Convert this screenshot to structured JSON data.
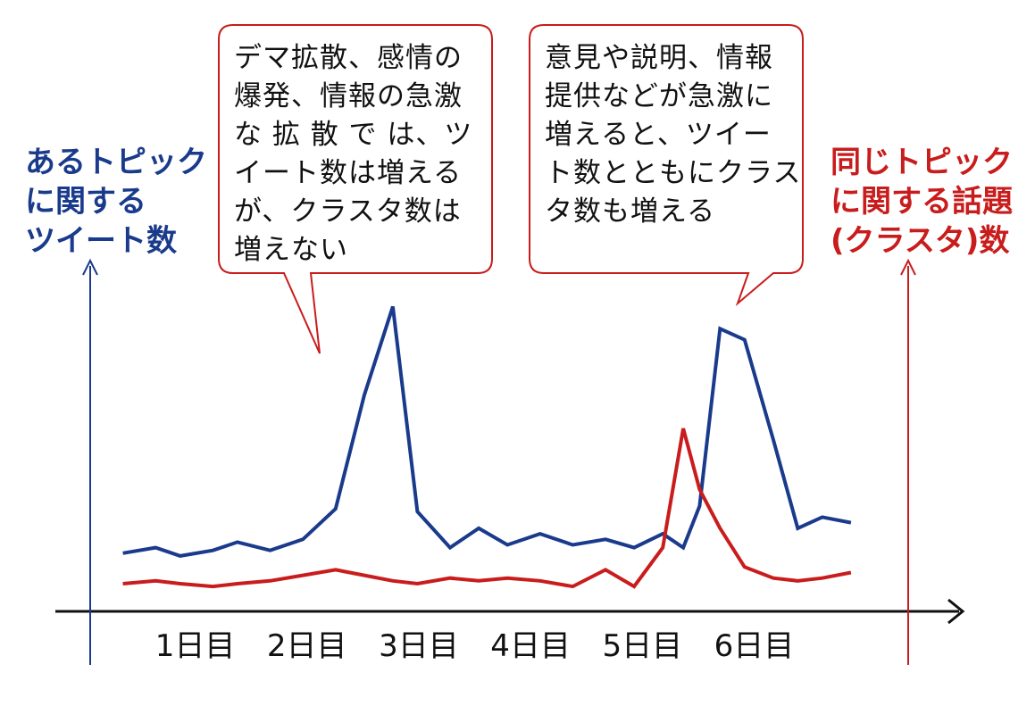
{
  "left_axis_title": [
    "あるトピック",
    "に関する",
    "ツイート数"
  ],
  "right_axis_title": [
    "同じトピック",
    "に関する話題",
    "(クラスタ)数"
  ],
  "callouts": {
    "left": [
      "デマ拡散、感情の",
      "爆発、情報の急激",
      "な 拡 散 で は、ツ",
      "イート数は増える",
      "が、クラスタ数は",
      "増えない"
    ],
    "right": [
      "意見や説明、情報",
      "提供などが急激に",
      "増えると、ツイー",
      "ト数とともにクラス",
      "タ数も増える"
    ]
  },
  "colors": {
    "tweets": "#1a3a8c",
    "clusters": "#c91c1c",
    "bubble_border": "#c91c1c",
    "axis": "#111111"
  },
  "chart_data": {
    "type": "line",
    "categories": [
      "1日目",
      "2日目",
      "3日目",
      "4日目",
      "5日目",
      "6日目"
    ],
    "x": [
      0.4,
      0.8,
      1.1,
      1.5,
      1.8,
      2.2,
      2.6,
      3.0,
      3.35,
      3.7,
      4.0,
      4.4,
      4.75,
      5.1,
      5.5,
      5.9,
      6.3,
      6.65,
      7.0,
      7.25,
      7.45,
      7.7,
      8.0,
      8.35,
      8.65,
      8.95,
      9.3
    ],
    "series": [
      {
        "key": "tweets",
        "values": [
          10.5,
          11.5,
          10,
          11,
          12.5,
          11,
          13,
          18.5,
          39,
          55,
          18,
          11.5,
          15,
          12,
          14,
          12,
          13,
          11.5,
          14,
          11.5,
          19,
          51,
          49,
          31,
          15,
          17,
          16
        ]
      },
      {
        "key": "clusters",
        "values": [
          5,
          5.5,
          5,
          4.5,
          5,
          5.5,
          6.5,
          7.5,
          6.5,
          5.5,
          5,
          6,
          5.5,
          6,
          5.5,
          4.5,
          7.5,
          4.5,
          11.5,
          33,
          22,
          15,
          8,
          6,
          5.5,
          6,
          7
        ]
      }
    ],
    "ylim": [
      0,
      62
    ],
    "xlim": [
      0,
      10
    ],
    "grid": false
  }
}
